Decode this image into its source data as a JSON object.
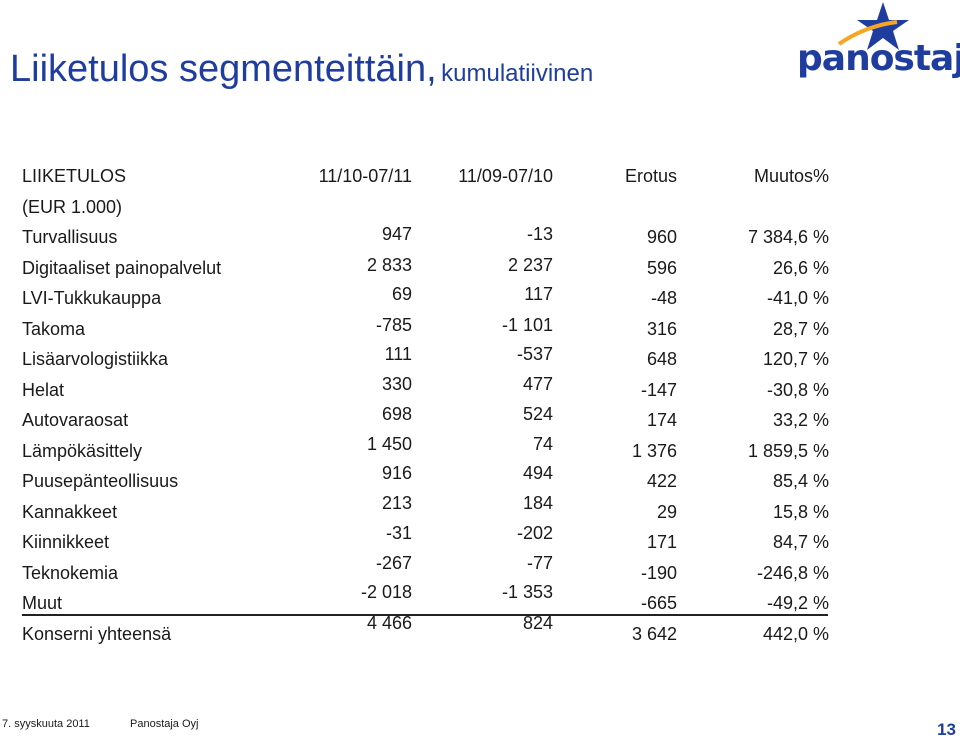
{
  "title": {
    "main": "Liiketulos segmenteittäin,",
    "sub": "kumulatiivinen"
  },
  "logo": {
    "text": "panostaja",
    "brand_color": "#1f3d9e",
    "accent_color": "#f5a623"
  },
  "table": {
    "headers": {
      "label_line1": "LIIKETULOS",
      "label_line2": "(EUR 1.000)",
      "col1": "11/10-07/11",
      "col2": "11/09-07/10",
      "col3": "Erotus",
      "col4": "Muutos%"
    },
    "rows": [
      {
        "label": "Turvallisuus",
        "v1": "947",
        "v2": "-13",
        "v3": "960",
        "v4": "7 384,6 %"
      },
      {
        "label": "Digitaaliset painopalvelut",
        "v1": "2 833",
        "v2": "2 237",
        "v3": "596",
        "v4": "26,6 %"
      },
      {
        "label": "LVI-Tukkukauppa",
        "v1": "69",
        "v2": "117",
        "v3": "-48",
        "v4": "-41,0 %"
      },
      {
        "label": "Takoma",
        "v1": "-785",
        "v2": "-1 101",
        "v3": "316",
        "v4": "28,7 %"
      },
      {
        "label": "Lisäarvologistiikka",
        "v1": "111",
        "v2": "-537",
        "v3": "648",
        "v4": "120,7 %"
      },
      {
        "label": "Helat",
        "v1": "330",
        "v2": "477",
        "v3": "-147",
        "v4": "-30,8 %"
      },
      {
        "label": "Autovaraosat",
        "v1": "698",
        "v2": "524",
        "v3": "174",
        "v4": "33,2 %"
      },
      {
        "label": "Lämpökäsittely",
        "v1": "1 450",
        "v2": "74",
        "v3": "1 376",
        "v4": "1 859,5 %"
      },
      {
        "label": "Puusepänteollisuus",
        "v1": "916",
        "v2": "494",
        "v3": "422",
        "v4": "85,4 %"
      },
      {
        "label": "Kannakkeet",
        "v1": "213",
        "v2": "184",
        "v3": "29",
        "v4": "15,8 %"
      },
      {
        "label": "Kiinnikkeet",
        "v1": "-31",
        "v2": "-202",
        "v3": "171",
        "v4": "84,7 %"
      },
      {
        "label": "Teknokemia",
        "v1": "-267",
        "v2": "-77",
        "v3": "-190",
        "v4": "-246,8 %"
      },
      {
        "label": "Muut",
        "v1": "-2 018",
        "v2": "-1 353",
        "v3": "-665",
        "v4": "-49,2 %"
      },
      {
        "label": "Konserni yhteensä",
        "v1": "4 466",
        "v2": "824",
        "v3": "3 642",
        "v4": "442,0 %"
      }
    ]
  },
  "footer": {
    "date": "7. syyskuuta 2011",
    "company": "Panostaja Oyj",
    "page_number": "13"
  }
}
